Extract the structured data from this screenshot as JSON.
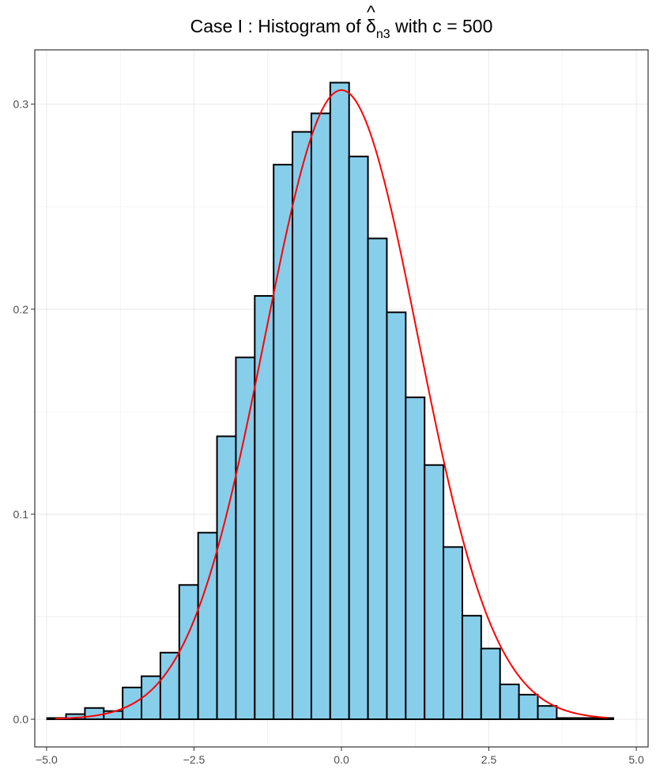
{
  "chart_data": {
    "type": "bar",
    "title": {
      "prefix": "Case I :  Histogram of ",
      "symbol": "δ",
      "hat": "^",
      "subscript": "n3",
      "suffix": " with c = 500"
    },
    "xlabel": "",
    "ylabel": "",
    "xlim": [
      -5.2,
      5.2
    ],
    "ylim": [
      -0.0135,
      0.3265
    ],
    "x_ticks": [
      -5.0,
      -2.5,
      0.0,
      2.5,
      5.0
    ],
    "x_tick_labels": [
      "−5.0",
      "−2.5",
      "0.0",
      "2.5",
      "5.0"
    ],
    "y_ticks": [
      0.0,
      0.1,
      0.2,
      0.3
    ],
    "y_tick_labels": [
      "0.0",
      "0.1",
      "0.2",
      "0.3"
    ],
    "grid": true,
    "bins": [
      {
        "x0": -4.99,
        "x1": -4.67,
        "value": 0.0006
      },
      {
        "x0": -4.67,
        "x1": -4.35,
        "value": 0.0025
      },
      {
        "x0": -4.35,
        "x1": -4.03,
        "value": 0.0055
      },
      {
        "x0": -4.03,
        "x1": -3.71,
        "value": 0.004
      },
      {
        "x0": -3.71,
        "x1": -3.39,
        "value": 0.0155
      },
      {
        "x0": -3.39,
        "x1": -3.07,
        "value": 0.021
      },
      {
        "x0": -3.07,
        "x1": -2.75,
        "value": 0.0325
      },
      {
        "x0": -2.75,
        "x1": -2.43,
        "value": 0.0655
      },
      {
        "x0": -2.43,
        "x1": -2.11,
        "value": 0.091
      },
      {
        "x0": -2.11,
        "x1": -1.79,
        "value": 0.138
      },
      {
        "x0": -1.79,
        "x1": -1.47,
        "value": 0.1765
      },
      {
        "x0": -1.47,
        "x1": -1.15,
        "value": 0.2065
      },
      {
        "x0": -1.15,
        "x1": -0.83,
        "value": 0.2705
      },
      {
        "x0": -0.83,
        "x1": -0.51,
        "value": 0.2865
      },
      {
        "x0": -0.51,
        "x1": -0.19,
        "value": 0.2955
      },
      {
        "x0": -0.19,
        "x1": 0.13,
        "value": 0.3105
      },
      {
        "x0": 0.13,
        "x1": 0.45,
        "value": 0.2745
      },
      {
        "x0": 0.45,
        "x1": 0.77,
        "value": 0.2345
      },
      {
        "x0": 0.77,
        "x1": 1.09,
        "value": 0.1985
      },
      {
        "x0": 1.09,
        "x1": 1.41,
        "value": 0.157
      },
      {
        "x0": 1.41,
        "x1": 1.73,
        "value": 0.124
      },
      {
        "x0": 1.73,
        "x1": 2.05,
        "value": 0.084
      },
      {
        "x0": 2.05,
        "x1": 2.37,
        "value": 0.0505
      },
      {
        "x0": 2.37,
        "x1": 2.69,
        "value": 0.0345
      },
      {
        "x0": 2.69,
        "x1": 3.01,
        "value": 0.017
      },
      {
        "x0": 3.01,
        "x1": 3.33,
        "value": 0.012
      },
      {
        "x0": 3.33,
        "x1": 3.65,
        "value": 0.0065
      },
      {
        "x0": 3.65,
        "x1": 3.97,
        "value": 0.0006
      },
      {
        "x0": 3.97,
        "x1": 4.29,
        "value": 0.0006
      },
      {
        "x0": 4.29,
        "x1": 4.61,
        "value": 0.0006
      }
    ],
    "density_curve": {
      "type": "normal",
      "mean": 0.0,
      "sd": 1.3,
      "x_range": [
        -4.85,
        4.5
      ]
    },
    "colors": {
      "bar_fill": "#87CEEB",
      "bar_stroke": "#000000",
      "curve": "#FF0000",
      "grid": "#EBEBEB",
      "panel_border": "#333333",
      "tick_text": "#4D4D4D"
    }
  }
}
